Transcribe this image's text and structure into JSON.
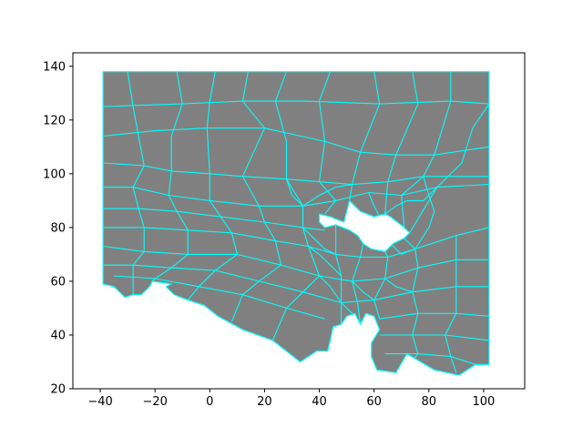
{
  "chart_data": {
    "type": "mesh",
    "title": "",
    "xlabel": "",
    "ylabel": "",
    "xlim": [
      -50,
      115
    ],
    "ylim": [
      20,
      145
    ],
    "xticks": [
      -40,
      -20,
      0,
      20,
      40,
      60,
      80,
      100
    ],
    "yticks": [
      20,
      40,
      60,
      80,
      100,
      120,
      140
    ],
    "grid": false,
    "colors": {
      "fill": "#808080",
      "edges": "#00ffff",
      "hole": "#ffffff"
    },
    "boundary": [
      [
        -39,
        138
      ],
      [
        102,
        138
      ],
      [
        102,
        29
      ],
      [
        97,
        29
      ],
      [
        91,
        25
      ],
      [
        82,
        27
      ],
      [
        72,
        33
      ],
      [
        68,
        26
      ],
      [
        61,
        27
      ],
      [
        59,
        32
      ],
      [
        59,
        37
      ],
      [
        62,
        42
      ],
      [
        60,
        47
      ],
      [
        57,
        48
      ],
      [
        55,
        44
      ],
      [
        53,
        48
      ],
      [
        50,
        47
      ],
      [
        48,
        44
      ],
      [
        45,
        43
      ],
      [
        44,
        38
      ],
      [
        43,
        34
      ],
      [
        39,
        34
      ],
      [
        33,
        30
      ],
      [
        23,
        38
      ],
      [
        12,
        42
      ],
      [
        3,
        47
      ],
      [
        -2,
        51
      ],
      [
        -8,
        53
      ],
      [
        -13,
        55
      ],
      [
        -16,
        58
      ],
      [
        -14,
        59
      ],
      [
        -21,
        60
      ],
      [
        -22,
        58
      ],
      [
        -25,
        55
      ],
      [
        -28,
        55
      ],
      [
        -31,
        54
      ],
      [
        -35,
        58
      ],
      [
        -39,
        59
      ]
    ],
    "holes": [
      [
        [
          40,
          85
        ],
        [
          44,
          84
        ],
        [
          49,
          82
        ],
        [
          51,
          90
        ],
        [
          55,
          86
        ],
        [
          60,
          84
        ],
        [
          64,
          85
        ],
        [
          66,
          84
        ],
        [
          71,
          80
        ],
        [
          73,
          78
        ],
        [
          71,
          76
        ],
        [
          67,
          74
        ],
        [
          64,
          71
        ],
        [
          59,
          72
        ],
        [
          56,
          74
        ],
        [
          54,
          77
        ],
        [
          51,
          79
        ],
        [
          46,
          81
        ],
        [
          42,
          80
        ],
        [
          40,
          82
        ]
      ]
    ],
    "mesh_edges": [
      [
        [
          -39,
          125
        ],
        [
          -10,
          126
        ],
        [
          12,
          127
        ],
        [
          35,
          127
        ],
        [
          62,
          126
        ],
        [
          88,
          127
        ],
        [
          102,
          126
        ]
      ],
      [
        [
          -39,
          114
        ],
        [
          -20,
          116
        ],
        [
          -1,
          117
        ],
        [
          20,
          117
        ],
        [
          42,
          112
        ],
        [
          55,
          108
        ],
        [
          68,
          107
        ],
        [
          82,
          107
        ],
        [
          102,
          110
        ]
      ],
      [
        [
          -39,
          104
        ],
        [
          -24,
          103
        ],
        [
          -14,
          101
        ],
        [
          0,
          100
        ],
        [
          12,
          99
        ],
        [
          28,
          98
        ],
        [
          40,
          97
        ],
        [
          52,
          96
        ],
        [
          65,
          97
        ],
        [
          78,
          99
        ],
        [
          102,
          99
        ]
      ],
      [
        [
          -39,
          95
        ],
        [
          -28,
          95
        ],
        [
          -15,
          92
        ],
        [
          0,
          90
        ],
        [
          18,
          88
        ],
        [
          34,
          88
        ],
        [
          46,
          90
        ],
        [
          58,
          93
        ],
        [
          70,
          92
        ],
        [
          83,
          95
        ],
        [
          102,
          96
        ]
      ],
      [
        [
          -39,
          87
        ],
        [
          -26,
          87
        ],
        [
          -12,
          86
        ],
        [
          4,
          84
        ],
        [
          20,
          82
        ],
        [
          34,
          80
        ],
        [
          42,
          79
        ]
      ],
      [
        [
          -39,
          80
        ],
        [
          -24,
          80
        ],
        [
          -8,
          79
        ],
        [
          8,
          78
        ],
        [
          24,
          75
        ],
        [
          36,
          73
        ],
        [
          46,
          70
        ],
        [
          55,
          69
        ],
        [
          65,
          69
        ],
        [
          75,
          72
        ],
        [
          90,
          77
        ],
        [
          102,
          80
        ]
      ],
      [
        [
          -39,
          73
        ],
        [
          -24,
          71
        ],
        [
          -8,
          70
        ],
        [
          10,
          70
        ],
        [
          26,
          66
        ],
        [
          40,
          62
        ],
        [
          52,
          60
        ],
        [
          64,
          61
        ],
        [
          76,
          65
        ],
        [
          90,
          68
        ],
        [
          102,
          68
        ]
      ],
      [
        [
          -39,
          66
        ],
        [
          -28,
          66
        ],
        [
          -14,
          65
        ],
        [
          2,
          64
        ],
        [
          18,
          60
        ],
        [
          34,
          56
        ],
        [
          48,
          52
        ],
        [
          60,
          53
        ],
        [
          74,
          56
        ],
        [
          90,
          58
        ],
        [
          102,
          58
        ]
      ],
      [
        [
          -35,
          62
        ],
        [
          -20,
          61
        ],
        [
          -4,
          58
        ],
        [
          12,
          55
        ],
        [
          28,
          50
        ],
        [
          42,
          46
        ]
      ],
      [
        [
          62,
          46
        ],
        [
          76,
          48
        ],
        [
          90,
          48
        ],
        [
          102,
          47
        ]
      ],
      [
        [
          62,
          40
        ],
        [
          74,
          40
        ],
        [
          86,
          40
        ],
        [
          102,
          38
        ]
      ],
      [
        [
          64,
          33
        ],
        [
          76,
          33
        ],
        [
          88,
          32
        ],
        [
          97,
          29
        ]
      ],
      [
        [
          -30,
          138
        ],
        [
          -28,
          125
        ],
        [
          -26,
          114
        ],
        [
          -24,
          103
        ],
        [
          -28,
          95
        ],
        [
          -26,
          87
        ],
        [
          -24,
          80
        ],
        [
          -24,
          71
        ],
        [
          -28,
          66
        ],
        [
          -28,
          55
        ]
      ],
      [
        [
          -12,
          138
        ],
        [
          -10,
          126
        ],
        [
          -14,
          114
        ],
        [
          -14,
          101
        ],
        [
          -15,
          92
        ],
        [
          -12,
          86
        ],
        [
          -8,
          79
        ],
        [
          -8,
          70
        ],
        [
          -14,
          65
        ],
        [
          -20,
          61
        ],
        [
          -21,
          60
        ]
      ],
      [
        [
          2,
          138
        ],
        [
          0,
          127
        ],
        [
          -1,
          117
        ],
        [
          0,
          100
        ],
        [
          0,
          90
        ],
        [
          4,
          84
        ],
        [
          8,
          78
        ],
        [
          10,
          70
        ],
        [
          2,
          64
        ],
        [
          -4,
          58
        ],
        [
          -8,
          53
        ]
      ],
      [
        [
          14,
          138
        ],
        [
          12,
          127
        ],
        [
          20,
          117
        ],
        [
          12,
          99
        ],
        [
          18,
          88
        ],
        [
          20,
          82
        ],
        [
          24,
          75
        ],
        [
          26,
          66
        ],
        [
          18,
          60
        ],
        [
          12,
          55
        ],
        [
          8,
          45
        ]
      ],
      [
        [
          28,
          138
        ],
        [
          24,
          127
        ],
        [
          28,
          112
        ],
        [
          28,
          98
        ],
        [
          34,
          88
        ],
        [
          34,
          80
        ],
        [
          36,
          73
        ],
        [
          40,
          62
        ],
        [
          34,
          56
        ],
        [
          28,
          50
        ],
        [
          23,
          38
        ]
      ],
      [
        [
          44,
          138
        ],
        [
          40,
          127
        ],
        [
          42,
          112
        ],
        [
          40,
          97
        ],
        [
          46,
          90
        ],
        [
          42,
          85
        ]
      ],
      [
        [
          60,
          138
        ],
        [
          62,
          126
        ],
        [
          55,
          108
        ],
        [
          52,
          96
        ],
        [
          51,
          90
        ]
      ],
      [
        [
          74,
          138
        ],
        [
          76,
          126
        ],
        [
          68,
          107
        ],
        [
          65,
          97
        ],
        [
          64,
          85
        ]
      ],
      [
        [
          88,
          138
        ],
        [
          88,
          127
        ],
        [
          82,
          107
        ],
        [
          78,
          99
        ],
        [
          70,
          92
        ],
        [
          71,
          80
        ]
      ],
      [
        [
          102,
          126
        ],
        [
          96,
          117
        ],
        [
          92,
          104
        ],
        [
          83,
          95
        ],
        [
          73,
          78
        ]
      ],
      [
        [
          46,
          81
        ],
        [
          46,
          70
        ],
        [
          48,
          62
        ],
        [
          48,
          52
        ],
        [
          48,
          44
        ]
      ],
      [
        [
          56,
          74
        ],
        [
          55,
          69
        ],
        [
          52,
          60
        ],
        [
          54,
          52
        ],
        [
          55,
          44
        ]
      ],
      [
        [
          64,
          71
        ],
        [
          65,
          69
        ],
        [
          64,
          61
        ],
        [
          60,
          53
        ],
        [
          62,
          46
        ]
      ],
      [
        [
          71,
          76
        ],
        [
          75,
          72
        ],
        [
          76,
          65
        ],
        [
          74,
          56
        ],
        [
          76,
          48
        ],
        [
          74,
          40
        ],
        [
          76,
          33
        ],
        [
          72,
          28
        ]
      ],
      [
        [
          90,
          77
        ],
        [
          90,
          68
        ],
        [
          90,
          58
        ],
        [
          90,
          48
        ],
        [
          86,
          40
        ],
        [
          88,
          32
        ],
        [
          90,
          26
        ]
      ],
      [
        [
          34,
          88
        ],
        [
          40,
          92
        ],
        [
          46,
          95
        ],
        [
          52,
          96
        ]
      ],
      [
        [
          34,
          80
        ],
        [
          38,
          76
        ],
        [
          42,
          72
        ],
        [
          46,
          70
        ]
      ],
      [
        [
          36,
          73
        ],
        [
          40,
          70
        ],
        [
          44,
          66
        ],
        [
          48,
          62
        ]
      ],
      [
        [
          64,
          85
        ],
        [
          68,
          88
        ],
        [
          72,
          90
        ],
        [
          78,
          90
        ],
        [
          83,
          95
        ]
      ],
      [
        [
          66,
          74
        ],
        [
          70,
          70
        ],
        [
          75,
          72
        ]
      ],
      [
        [
          58,
          93
        ],
        [
          60,
          88
        ],
        [
          62,
          84
        ]
      ],
      [
        [
          28,
          98
        ],
        [
          30,
          92
        ],
        [
          34,
          88
        ]
      ],
      [
        [
          78,
          99
        ],
        [
          80,
          92
        ],
        [
          82,
          86
        ],
        [
          80,
          80
        ],
        [
          75,
          72
        ]
      ],
      [
        [
          40,
          62
        ],
        [
          44,
          58
        ],
        [
          48,
          52
        ],
        [
          52,
          48
        ]
      ],
      [
        [
          52,
          60
        ],
        [
          56,
          56
        ],
        [
          60,
          53
        ]
      ],
      [
        [
          64,
          61
        ],
        [
          68,
          58
        ],
        [
          74,
          56
        ]
      ]
    ]
  }
}
